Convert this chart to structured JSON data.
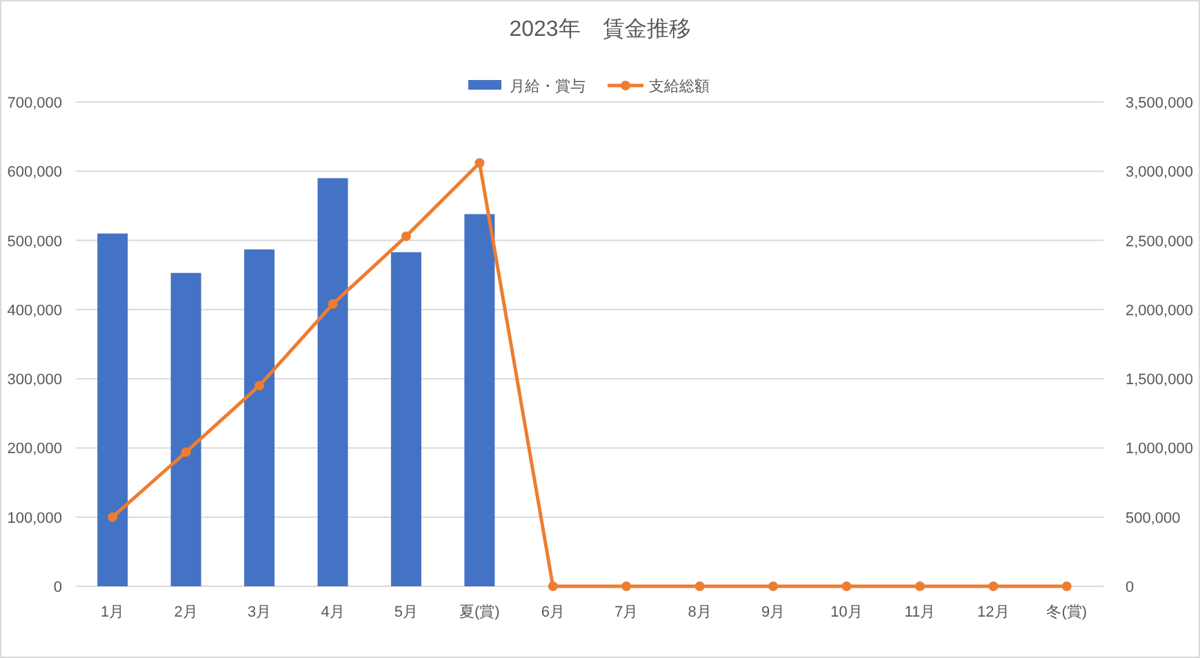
{
  "chart_data": {
    "type": "bar",
    "title": "2023年　賃金推移",
    "categories": [
      "1月",
      "2月",
      "3月",
      "4月",
      "5月",
      "夏(賞)",
      "6月",
      "7月",
      "8月",
      "9月",
      "10月",
      "11月",
      "12月",
      "冬(賞)"
    ],
    "series": [
      {
        "name": "月給・賞与",
        "color": "#4472c4",
        "values": [
          510000,
          453000,
          487000,
          590000,
          483000,
          538000,
          null,
          null,
          null,
          null,
          null,
          null,
          null,
          null
        ]
      },
      {
        "name": "支給総額",
        "type": "line",
        "axis": "y2",
        "color": "#ed7d31",
        "marker": "circle",
        "values": [
          500000,
          970000,
          1450000,
          2040000,
          2530000,
          3060000,
          0,
          0,
          0,
          0,
          0,
          0,
          0,
          0
        ]
      }
    ],
    "ylim": [
      0,
      700000
    ],
    "yticks": [
      0,
      {
        "value": 100000,
        "label": "100,000"
      },
      {
        "value": 200000,
        "label": "200,000"
      },
      {
        "value": 300000,
        "label": "300,000"
      },
      {
        "value": 400000,
        "label": "400,000"
      },
      {
        "value": 500000,
        "label": "500,000"
      },
      {
        "value": 600000,
        "label": "600,000"
      },
      {
        "value": 700000,
        "label": "700,000"
      }
    ],
    "y2lim": [
      0,
      3500000
    ],
    "y2ticks": [
      0,
      {
        "value": 500000,
        "label": "500,000"
      },
      {
        "value": 1000000,
        "label": "1,000,000"
      },
      {
        "value": 1500000,
        "label": "1,500,000"
      },
      {
        "value": 2000000,
        "label": "2,000,000"
      },
      {
        "value": 2500000,
        "label": "2,500,000"
      },
      {
        "value": 3000000,
        "label": "3,000,000"
      },
      {
        "value": 3500000,
        "label": "3,500,000"
      }
    ],
    "grid": "y",
    "legend": "top"
  }
}
